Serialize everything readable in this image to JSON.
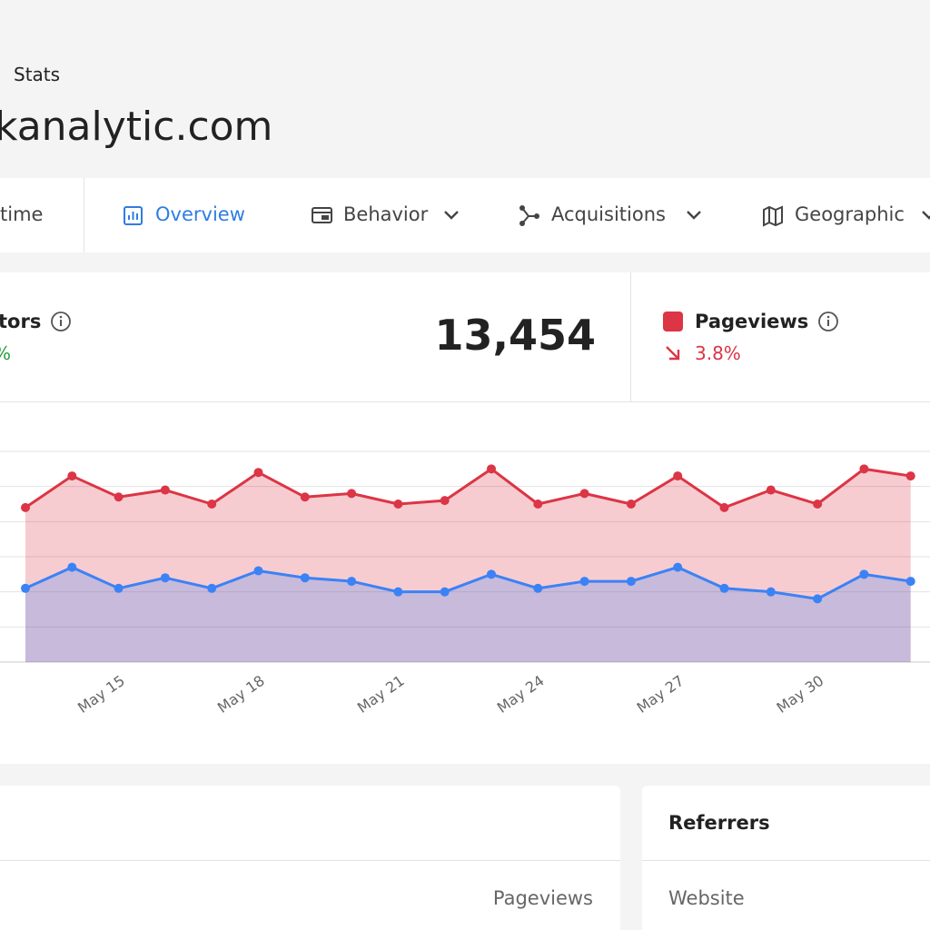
{
  "header": {
    "breadcrumb": "Stats",
    "title": "kanalytic.com"
  },
  "tabs": [
    "time",
    "Overview",
    "Behavior",
    "Acquisitions",
    "Geographic"
  ],
  "stats": [
    {
      "label": "tors",
      "change": "%",
      "total": "13,454"
    },
    {
      "label": "Pageviews",
      "change": "3.8%"
    }
  ],
  "chart_data": {
    "type": "line",
    "area": true,
    "categories": [
      null,
      null,
      "May 15",
      null,
      null,
      "May 18",
      null,
      null,
      "May 21",
      null,
      null,
      "May 24",
      null,
      null,
      "May 27",
      null,
      null,
      "May 30",
      null,
      null
    ],
    "series": [
      {
        "color": "#dc3545",
        "values": [
          4.4,
          5.3,
          4.7,
          4.9,
          4.5,
          5.4,
          4.7,
          4.8,
          4.5,
          4.6,
          5.5,
          4.5,
          4.8,
          4.5,
          5.3,
          4.4,
          4.9,
          4.5,
          5.5,
          5.3
        ]
      },
      {
        "color": "#3b82f6",
        "values": [
          2.1,
          2.7,
          2.1,
          2.4,
          2.1,
          2.6,
          2.4,
          2.3,
          2.0,
          2.0,
          2.5,
          2.1,
          2.3,
          2.3,
          2.7,
          2.1,
          2.0,
          1.8,
          2.5,
          2.3
        ]
      }
    ],
    "ylim": [
      0,
      6
    ],
    "yticks": [
      0,
      1,
      2,
      3,
      4,
      5,
      6
    ],
    "grid": true
  },
  "panels": [
    {
      "column": "Pageviews"
    },
    {
      "title": "Referrers",
      "column": "Website"
    }
  ]
}
